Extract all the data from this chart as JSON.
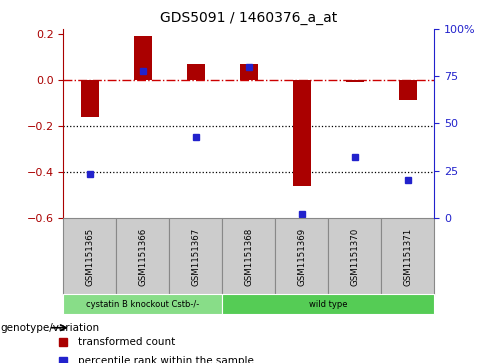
{
  "title": "GDS5091 / 1460376_a_at",
  "samples": [
    "GSM1151365",
    "GSM1151366",
    "GSM1151367",
    "GSM1151368",
    "GSM1151369",
    "GSM1151370",
    "GSM1151371"
  ],
  "red_values": [
    -0.16,
    0.19,
    0.07,
    0.07,
    -0.46,
    -0.01,
    -0.09
  ],
  "blue_values": [
    23,
    78,
    43,
    80,
    2,
    32,
    20
  ],
  "ylim_left": [
    -0.6,
    0.22
  ],
  "ylim_right": [
    0,
    100
  ],
  "yticks_left": [
    -0.6,
    -0.4,
    -0.2,
    0.0,
    0.2
  ],
  "yticks_right": [
    0,
    25,
    50,
    75,
    100
  ],
  "ytick_labels_right": [
    "0",
    "25",
    "50",
    "75",
    "100%"
  ],
  "red_color": "#aa0000",
  "blue_color": "#2222cc",
  "bar_width": 0.35,
  "groups": [
    {
      "label": "cystatin B knockout Cstb-/-",
      "indices": [
        0,
        1,
        2
      ],
      "color": "#88dd88"
    },
    {
      "label": "wild type",
      "indices": [
        3,
        4,
        5,
        6
      ],
      "color": "#55cc55"
    }
  ],
  "legend_items": [
    {
      "label": "transformed count",
      "color": "#aa0000"
    },
    {
      "label": "percentile rank within the sample",
      "color": "#2222cc"
    }
  ],
  "genotype_label": "genotype/variation",
  "hlines": [
    -0.2,
    -0.4
  ],
  "zero_line_color": "#cc0000",
  "bg_color": "#ffffff",
  "plot_bg": "#ffffff",
  "sample_box_color": "#cccccc",
  "sample_box_edge": "#888888"
}
